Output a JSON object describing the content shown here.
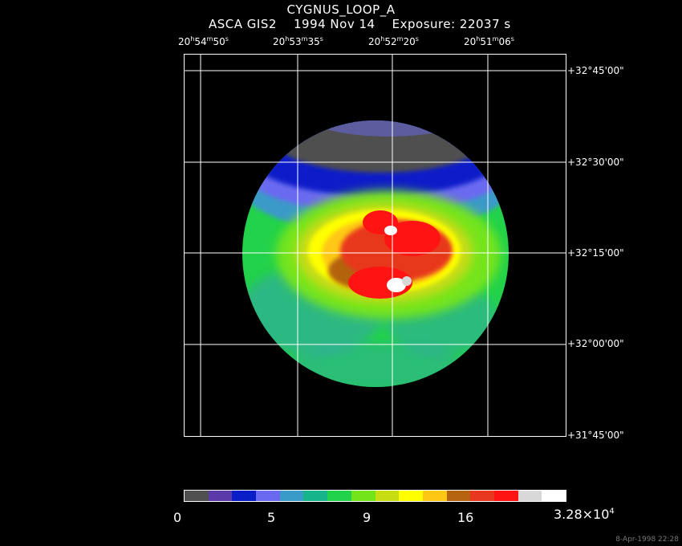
{
  "title": "CYGNUS_LOOP_A",
  "subtitle": {
    "instrument": "ASCA GIS2",
    "date": "1994 Nov 14",
    "exposure": "Exposure: 22037 s"
  },
  "ra_labels": [
    {
      "h": "20",
      "m": "54",
      "s": "50"
    },
    {
      "h": "20",
      "m": "53",
      "s": "35"
    },
    {
      "h": "20",
      "m": "52",
      "s": "20"
    },
    {
      "h": "20",
      "m": "51",
      "s": "06"
    }
  ],
  "dec_labels": [
    "+32°45'00\"",
    "+32°30'00\"",
    "+32°15'00\"",
    "+32°00'00\"",
    "+31°45'00\""
  ],
  "colorbar": {
    "colors": [
      "#505050",
      "#5a3aa8",
      "#0a1ec8",
      "#6a6af0",
      "#3a9ac8",
      "#16b48a",
      "#22d24a",
      "#74e41a",
      "#c8dc14",
      "#ffff00",
      "#ffc814",
      "#b46410",
      "#e8381e",
      "#ff1414",
      "#d8d8d8",
      "#ffffff"
    ],
    "labels": [
      "0",
      "5",
      "9",
      "16",
      "3.28×10"
    ],
    "exponent": "4"
  },
  "datestamp": "8-Apr-1998 22:28"
}
